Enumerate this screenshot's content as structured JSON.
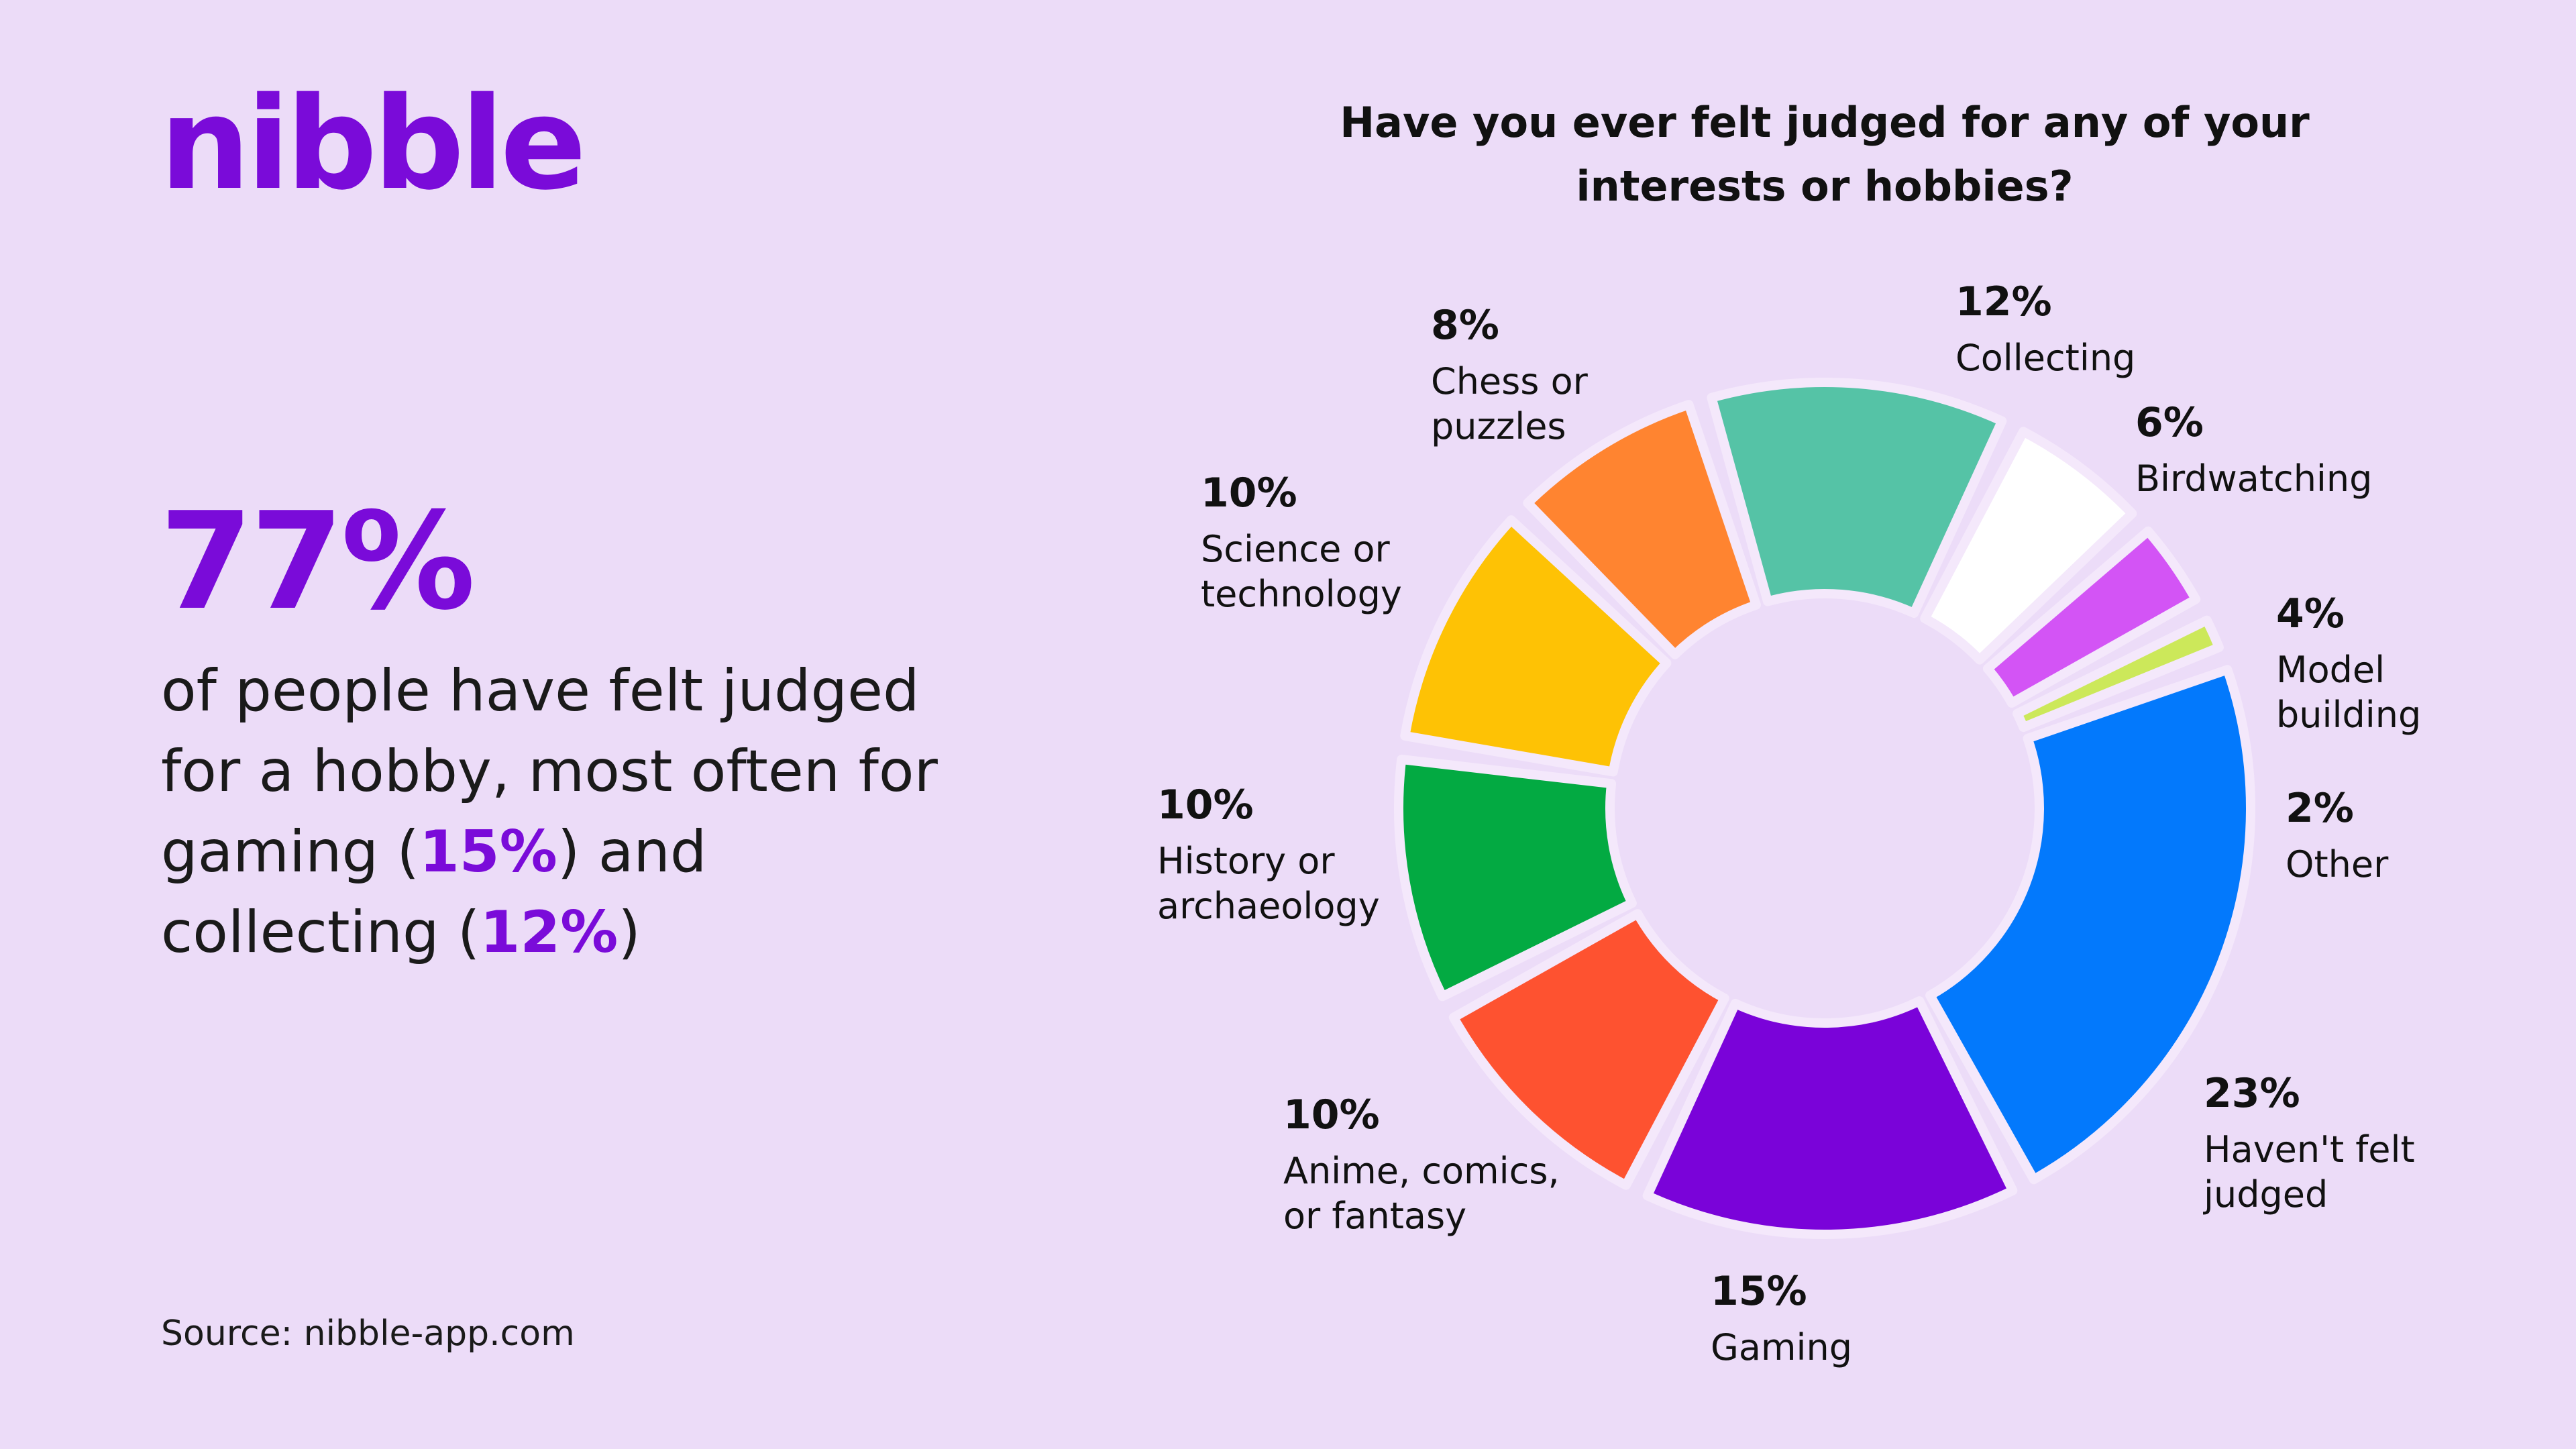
{
  "brand": {
    "logo": "nibble"
  },
  "headline": {
    "stat": "77%",
    "text_1": "of people have felt judged for a hobby, most often for gaming (",
    "gaming_pct": "15%",
    "text_2": ") and collecting (",
    "collecting_pct": "12%",
    "text_3": ")"
  },
  "source": "Source: nibble-app.com",
  "chart_data": {
    "type": "pie",
    "title": "Have you ever felt judged for any of your interests or hobbies?",
    "unit": "%",
    "slices": [
      {
        "label": "Collecting",
        "value": 12,
        "color": "#55c3a6",
        "label_lines": [
          "Collecting"
        ]
      },
      {
        "label": "Birdwatching",
        "value": 6,
        "color": "#ffffff",
        "label_lines": [
          "Birdwatching"
        ]
      },
      {
        "label": "Model building",
        "value": 4,
        "color": "#d354f5",
        "label_lines": [
          "Model",
          "building"
        ]
      },
      {
        "label": "Other",
        "value": 2,
        "color": "#cce85a",
        "label_lines": [
          "Other"
        ]
      },
      {
        "label": "Haven't felt judged",
        "value": 23,
        "color": "#0379fc",
        "label_lines": [
          "Haven't felt",
          "judged"
        ]
      },
      {
        "label": "Gaming",
        "value": 15,
        "color": "#7a03d9",
        "label_lines": [
          "Gaming"
        ]
      },
      {
        "label": "Anime, comics, or fantasy",
        "value": 10,
        "color": "#fe5230",
        "label_lines": [
          "Anime, comics,",
          "or fantasy"
        ]
      },
      {
        "label": "History or archaeology",
        "value": 10,
        "color": "#03aa42",
        "label_lines": [
          "History or",
          "archaeology"
        ]
      },
      {
        "label": "Science or technology",
        "value": 10,
        "color": "#fec205",
        "label_lines": [
          "Science or",
          "technology"
        ]
      },
      {
        "label": "Chess or puzzles",
        "value": 8,
        "color": "#ff8430",
        "label_lines": [
          "Chess or",
          "puzzles"
        ]
      }
    ]
  }
}
